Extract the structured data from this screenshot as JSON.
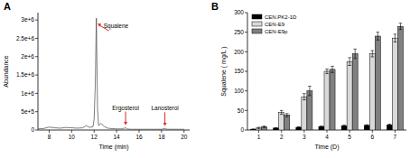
{
  "chart_data": [
    {
      "type": "line",
      "title": "A",
      "x_label": "Time (min)",
      "y_label": "Abundance",
      "x": [
        7,
        7.5,
        8,
        8.5,
        9,
        9.5,
        10,
        10.5,
        11,
        11.3,
        11.6,
        11.9,
        12.0,
        12.1,
        12.2,
        12.3,
        12.4,
        12.6,
        12.9,
        13.2,
        13.5,
        14,
        14.5,
        14.8,
        14.9,
        15.2,
        15.6,
        16,
        16.5,
        17,
        17.5,
        18,
        18.3,
        18.5,
        19,
        19.5,
        20
      ],
      "values": [
        30000,
        40000,
        80000,
        60000,
        50000,
        70000,
        60000,
        50000,
        60000,
        120000,
        70000,
        90000,
        300000,
        1200000,
        3050000,
        600000,
        120000,
        180000,
        100000,
        50000,
        40000,
        30000,
        30000,
        60000,
        30000,
        20000,
        20000,
        20000,
        20000,
        20000,
        20000,
        20000,
        40000,
        20000,
        20000,
        20000,
        20000
      ],
      "color": "#444444",
      "xlim": [
        7,
        20.5
      ],
      "xticks": [
        8,
        10,
        12,
        14,
        16,
        18,
        20
      ],
      "ylim": [
        0,
        3200000
      ],
      "yticks": [
        0,
        {
          "value": 500000,
          "label": "5e+5"
        },
        {
          "value": 1000000,
          "label": "1e+6"
        },
        {
          "value": 1500000,
          "label": "1.5e+6"
        },
        {
          "value": 2000000,
          "label": "2e+6"
        },
        {
          "value": 2500000,
          "label": "2.5e+6"
        },
        {
          "value": 3000000,
          "label": "3e+6"
        }
      ],
      "annotations": [
        {
          "text": "Squalene",
          "x": 12.2,
          "y": 3050000
        },
        {
          "text": "Ergosterol",
          "x": 14.8,
          "y": 60000
        },
        {
          "text": "Lanosterol",
          "x": 18.3,
          "y": 40000
        }
      ]
    },
    {
      "type": "bar",
      "title": "B",
      "x_label": "Time (D)",
      "y_label": "Squalene ( mg/L )",
      "categories": [
        "1",
        "2",
        "3",
        "4",
        "5",
        "6",
        "7"
      ],
      "series": [
        {
          "name": "CEN.PK2-1D",
          "color": "#000000",
          "values": [
            2,
            5,
            7,
            9,
            11,
            12,
            13
          ],
          "errors": [
            0.5,
            1,
            1,
            1,
            1.5,
            1.5,
            2
          ]
        },
        {
          "name": "CEN-E9",
          "color": "#d9d9d9",
          "values": [
            5,
            45,
            85,
            150,
            175,
            195,
            235
          ],
          "errors": [
            2,
            5,
            8,
            6,
            10,
            8,
            10
          ]
        },
        {
          "name": "CEN-E9p",
          "color": "#808080",
          "values": [
            8,
            38,
            100,
            155,
            195,
            240,
            265
          ],
          "errors": [
            2,
            4,
            12,
            8,
            12,
            10,
            8
          ]
        }
      ],
      "ylim": [
        0,
        300
      ],
      "yticks": [
        0,
        50,
        100,
        150,
        200,
        250,
        300
      ],
      "legend": "upper-left"
    }
  ]
}
